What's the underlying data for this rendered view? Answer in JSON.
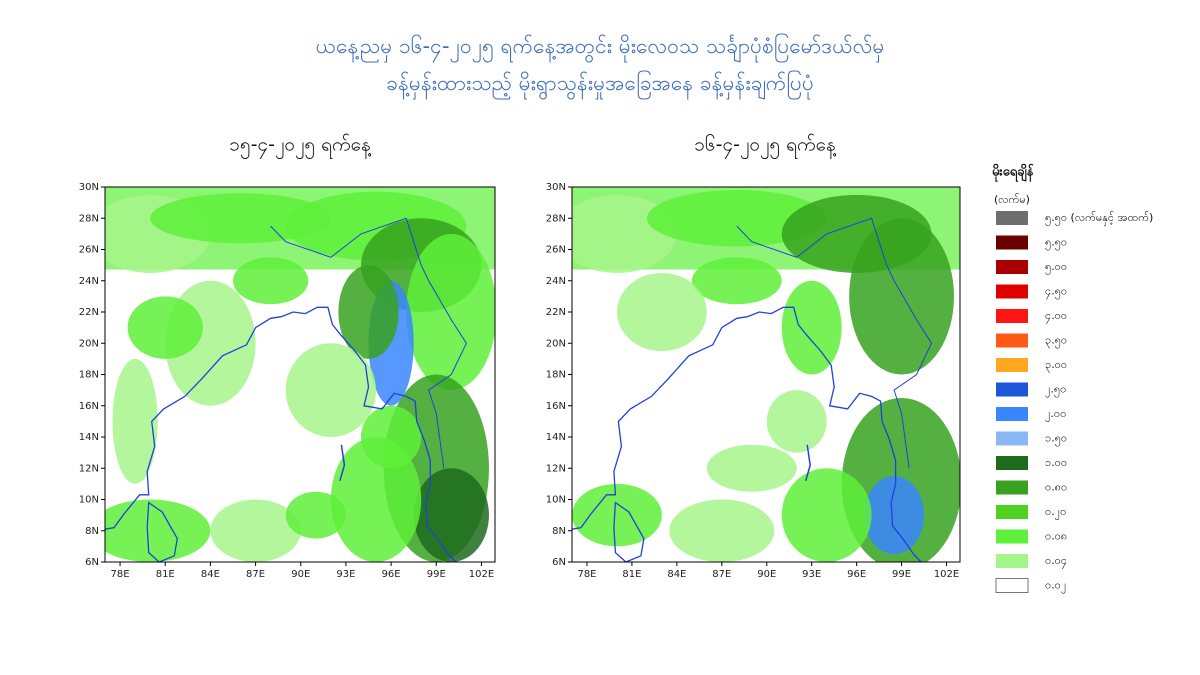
{
  "title_lines": [
    "ယနေ့ညမှ ၁၆-၄-၂၀၂၅ ရက်နေ့အတွင်း မိုးလေဝသ သင်္ချာပုံစံပြမော်ဒယ်လ်မှ",
    "ခန့်မှန်းထားသည့် မိုးရွာသွန်းမှုအခြေအနေ ခန့်မှန်းချက်ပြပုံ"
  ],
  "axes": {
    "xlim": [
      77,
      102.9
    ],
    "ylim": [
      6,
      30
    ],
    "xticks": [
      {
        "value": 78,
        "label": "78E"
      },
      {
        "value": 81,
        "label": "81E"
      },
      {
        "value": 84,
        "label": "84E"
      },
      {
        "value": 87,
        "label": "87E"
      },
      {
        "value": 90,
        "label": "90E"
      },
      {
        "value": 93,
        "label": "93E"
      },
      {
        "value": 96,
        "label": "96E"
      },
      {
        "value": 99,
        "label": "99E"
      },
      {
        "value": 102,
        "label": "102E"
      }
    ],
    "yticks": [
      {
        "value": 6,
        "label": "6N"
      },
      {
        "value": 8,
        "label": "8N"
      },
      {
        "value": 10,
        "label": "10N"
      },
      {
        "value": 12,
        "label": "12N"
      },
      {
        "value": 14,
        "label": "14N"
      },
      {
        "value": 16,
        "label": "16N"
      },
      {
        "value": 18,
        "label": "18N"
      },
      {
        "value": 20,
        "label": "20N"
      },
      {
        "value": 22,
        "label": "22N"
      },
      {
        "value": 24,
        "label": "24N"
      },
      {
        "value": 26,
        "label": "26N"
      },
      {
        "value": 28,
        "label": "28N"
      },
      {
        "value": 30,
        "label": "30N"
      }
    ]
  },
  "maps": [
    {
      "title": "၁၅-၄-၂၀၂၅ ရက်နေ့"
    },
    {
      "title": "၁၆-၄-၂၀၂၅ ရက်နေ့"
    }
  ],
  "legend": {
    "title": "မိုးရေချိန်",
    "unit": "(လက်မ)",
    "items": [
      {
        "label": "၅.၅၀ (လက်မနှင့် အထက်)",
        "color": "#6e6e6e"
      },
      {
        "label": "၅.၅၀",
        "color": "#6b0000"
      },
      {
        "label": "၅.၀၀",
        "color": "#a80000"
      },
      {
        "label": "၄.၅၀",
        "color": "#e00000"
      },
      {
        "label": "၄.၀၀",
        "color": "#ff1414"
      },
      {
        "label": "၃.၅၀",
        "color": "#ff5a14"
      },
      {
        "label": "၃.၀၀",
        "color": "#ffa81e"
      },
      {
        "label": "၂.၅၀",
        "color": "#1f55d8"
      },
      {
        "label": "၂.၀၀",
        "color": "#3a86ff"
      },
      {
        "label": "၁.၅၀",
        "color": "#8ab8f5"
      },
      {
        "label": "၁.၀၀",
        "color": "#1e6b1e"
      },
      {
        "label": "၀.၈၀",
        "color": "#36a21e"
      },
      {
        "label": "၀.၂၀",
        "color": "#4fd120"
      },
      {
        "label": "၀.၀၈",
        "color": "#5ef03a"
      },
      {
        "label": "၀.၀၄",
        "color": "#a6f58a"
      },
      {
        "label": "၀.၀၂",
        "color": "#ffffff"
      }
    ]
  }
}
